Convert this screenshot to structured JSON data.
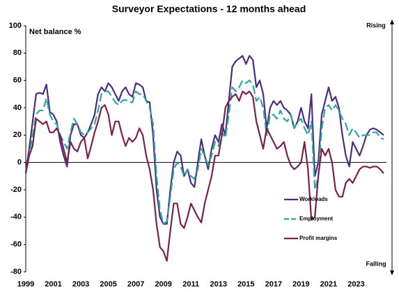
{
  "chart_data": {
    "type": "line",
    "title": "Surveyor Expectations - 12 months ahead",
    "y_label": "Net balance %",
    "annotations": [
      "Rising",
      "Falling"
    ],
    "categories": [
      "1999",
      null,
      null,
      null,
      null,
      null,
      null,
      null,
      "2001",
      null,
      null,
      null,
      null,
      null,
      null,
      null,
      "2003",
      null,
      null,
      null,
      null,
      null,
      null,
      null,
      "2005",
      null,
      null,
      null,
      null,
      null,
      null,
      null,
      "2007",
      null,
      null,
      null,
      null,
      null,
      null,
      null,
      "2009",
      null,
      null,
      null,
      null,
      null,
      null,
      null,
      "2011",
      null,
      null,
      null,
      null,
      null,
      null,
      null,
      "2013",
      null,
      null,
      null,
      null,
      null,
      null,
      null,
      "2015",
      null,
      null,
      null,
      null,
      null,
      null,
      null,
      "2017",
      null,
      null,
      null,
      null,
      null,
      null,
      null,
      "2019",
      null,
      null,
      null,
      null,
      null,
      null,
      null,
      "2021",
      null,
      null,
      null,
      null,
      null,
      null,
      null,
      "2023",
      null,
      null,
      null,
      null,
      null,
      null,
      null,
      null
    ],
    "ylim": [
      -80,
      100
    ],
    "yticks": [
      -80,
      -60,
      -40,
      -20,
      0,
      20,
      40,
      60,
      80,
      100
    ],
    "grid": false,
    "legend": "lower right",
    "series": [
      {
        "name": "Workloads",
        "color": "#4b2c7f",
        "style": "solid",
        "values": [
          -7,
          10,
          30,
          50,
          51,
          50,
          57,
          37,
          35,
          30,
          15,
          5,
          -3,
          20,
          28,
          28,
          20,
          18,
          22,
          28,
          35,
          50,
          55,
          52,
          58,
          55,
          50,
          45,
          52,
          55,
          50,
          48,
          58,
          57,
          55,
          45,
          44,
          20,
          -20,
          -40,
          -45,
          -45,
          -20,
          0,
          8,
          5,
          -10,
          -5,
          -15,
          -18,
          0,
          17,
          5,
          -5,
          10,
          20,
          15,
          28,
          20,
          45,
          70,
          74,
          76,
          78,
          72,
          78,
          75,
          55,
          60,
          50,
          25,
          40,
          45,
          42,
          45,
          40,
          38,
          35,
          25,
          30,
          40,
          30,
          25,
          50,
          -10,
          0,
          35,
          45,
          55,
          45,
          48,
          40,
          20,
          5,
          -3,
          15,
          10,
          5,
          12,
          20,
          24,
          25,
          24,
          22,
          20
        ]
      },
      {
        "name": "Employment",
        "color": "#2aa5a5",
        "style": "dashed",
        "values": [
          -7,
          5,
          20,
          35,
          38,
          38,
          47,
          35,
          30,
          28,
          20,
          15,
          10,
          22,
          32,
          28,
          22,
          20,
          22,
          25,
          28,
          38,
          50,
          52,
          52,
          48,
          44,
          42,
          45,
          46,
          44,
          44,
          52,
          50,
          50,
          45,
          40,
          28,
          -10,
          -35,
          -45,
          -43,
          -25,
          -5,
          0,
          -3,
          -10,
          -5,
          -10,
          -12,
          -5,
          10,
          5,
          -2,
          5,
          15,
          12,
          22,
          18,
          35,
          55,
          52,
          55,
          60,
          58,
          60,
          57,
          45,
          48,
          40,
          20,
          35,
          35,
          32,
          38,
          32,
          30,
          35,
          25,
          30,
          32,
          25,
          20,
          30,
          -20,
          -10,
          25,
          40,
          42,
          38,
          42,
          38,
          32,
          28,
          20,
          25,
          22,
          18,
          20,
          20,
          20,
          22,
          22,
          18,
          17
        ]
      },
      {
        "name": "Profit margins",
        "color": "#7b1f4b",
        "style": "solid",
        "values": [
          -8,
          5,
          12,
          32,
          30,
          28,
          30,
          22,
          22,
          25,
          20,
          10,
          0,
          15,
          10,
          8,
          15,
          18,
          3,
          12,
          22,
          30,
          40,
          42,
          35,
          20,
          30,
          30,
          20,
          12,
          18,
          15,
          18,
          25,
          20,
          5,
          -5,
          -20,
          -45,
          -62,
          -65,
          -72,
          -50,
          -30,
          -30,
          -45,
          -48,
          -40,
          -30,
          -35,
          -40,
          -44,
          -30,
          -20,
          -10,
          5,
          5,
          20,
          40,
          45,
          48,
          50,
          45,
          52,
          50,
          52,
          48,
          30,
          20,
          10,
          25,
          20,
          15,
          10,
          12,
          15,
          5,
          -2,
          -5,
          -3,
          0,
          15,
          -5,
          -42,
          -40,
          -10,
          10,
          5,
          10,
          0,
          -20,
          -25,
          -25,
          -15,
          -12,
          -15,
          -10,
          -5,
          -3,
          -3,
          -4,
          -3,
          -3,
          -5,
          -8
        ]
      }
    ]
  }
}
